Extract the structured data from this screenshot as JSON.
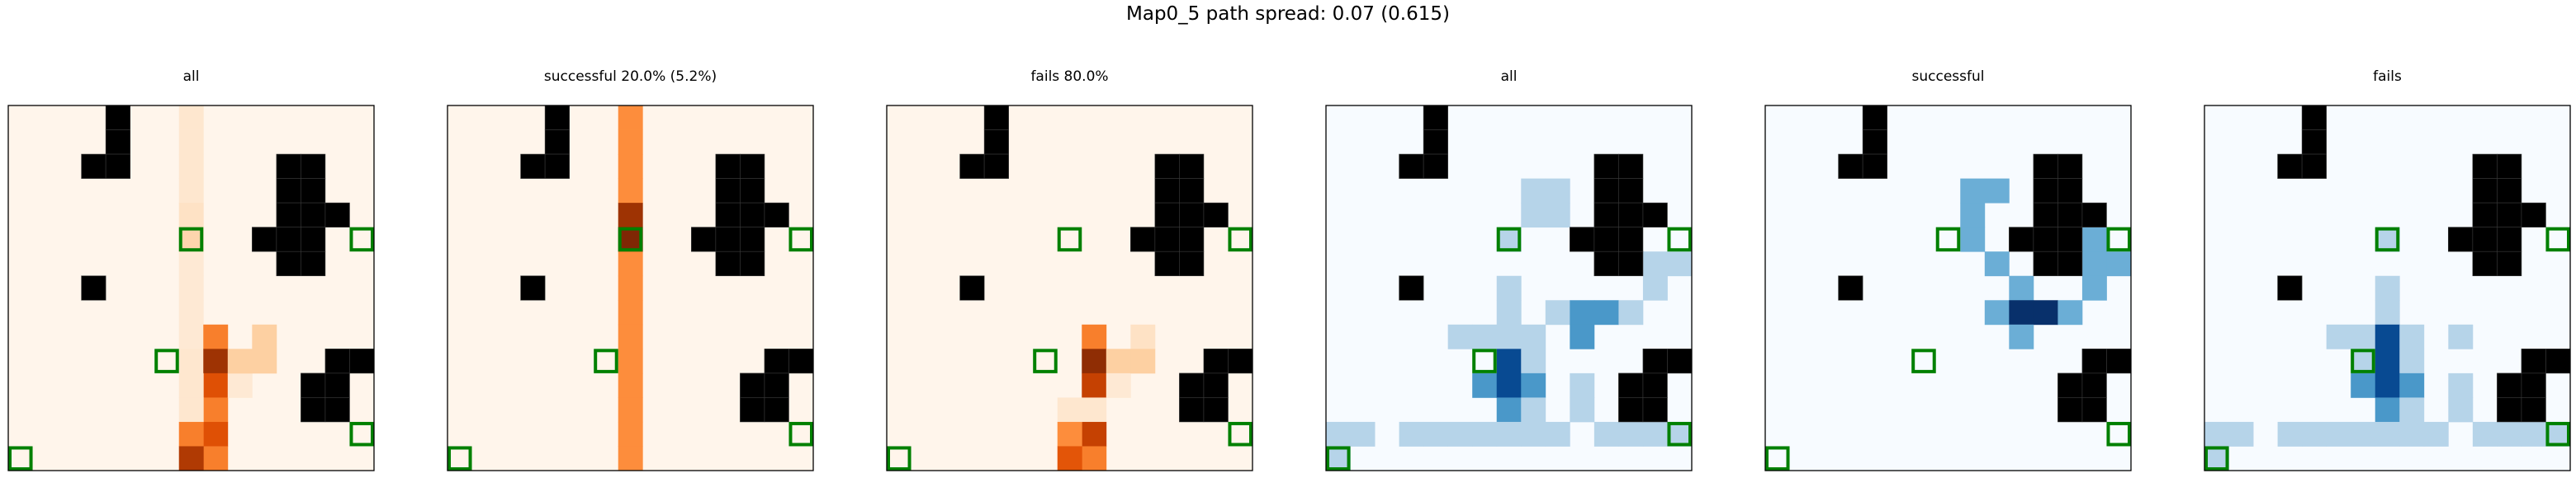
{
  "figure": {
    "title": "Map0_5 path spread: 0.07 (0.615)"
  },
  "colors": {
    "wall": "#000000",
    "goal_outline": "#008000",
    "frame": "#000000",
    "background": "#ffffff"
  },
  "chart_data": [
    {
      "type": "heatmap",
      "title": "all",
      "colormap": "Oranges",
      "grid": [
        15,
        15
      ],
      "walls": [
        [
          4,
          0
        ],
        [
          4,
          1
        ],
        [
          3,
          2
        ],
        [
          4,
          2
        ],
        [
          11,
          2
        ],
        [
          12,
          2
        ],
        [
          11,
          3
        ],
        [
          12,
          3
        ],
        [
          11,
          4
        ],
        [
          12,
          4
        ],
        [
          13,
          4
        ],
        [
          10,
          5
        ],
        [
          11,
          5
        ],
        [
          12,
          5
        ],
        [
          11,
          6
        ],
        [
          12,
          6
        ],
        [
          3,
          7
        ],
        [
          13,
          10
        ],
        [
          14,
          10
        ],
        [
          12,
          11
        ],
        [
          13,
          11
        ],
        [
          12,
          12
        ],
        [
          13,
          12
        ]
      ],
      "goals": [
        [
          7,
          5
        ],
        [
          14,
          5
        ],
        [
          6,
          10
        ],
        [
          14,
          13
        ],
        [
          0,
          14
        ]
      ],
      "cells": [
        [
          7,
          0,
          0.12
        ],
        [
          7,
          1,
          0.12
        ],
        [
          7,
          2,
          0.12
        ],
        [
          7,
          3,
          0.12
        ],
        [
          7,
          4,
          0.15
        ],
        [
          7,
          5,
          0.22
        ],
        [
          7,
          6,
          0.1
        ],
        [
          7,
          7,
          0.1
        ],
        [
          7,
          8,
          0.1
        ],
        [
          7,
          9,
          0.1
        ],
        [
          7,
          10,
          0.12
        ],
        [
          8,
          9,
          0.55
        ],
        [
          8,
          10,
          0.9
        ],
        [
          8,
          11,
          0.72
        ],
        [
          8,
          12,
          0.55
        ],
        [
          8,
          13,
          0.72
        ],
        [
          8,
          14,
          0.55
        ],
        [
          7,
          11,
          0.12
        ],
        [
          7,
          12,
          0.12
        ],
        [
          7,
          13,
          0.55
        ],
        [
          7,
          14,
          0.85
        ],
        [
          9,
          11,
          0.1
        ],
        [
          10,
          9,
          0.25
        ],
        [
          10,
          10,
          0.25
        ],
        [
          9,
          10,
          0.25
        ]
      ]
    },
    {
      "type": "heatmap",
      "title": "successful 20.0% (5.2%)",
      "colormap": "Oranges",
      "grid": [
        15,
        15
      ],
      "walls": [
        [
          4,
          0
        ],
        [
          4,
          1
        ],
        [
          3,
          2
        ],
        [
          4,
          2
        ],
        [
          11,
          2
        ],
        [
          12,
          2
        ],
        [
          11,
          3
        ],
        [
          12,
          3
        ],
        [
          11,
          4
        ],
        [
          12,
          4
        ],
        [
          13,
          4
        ],
        [
          10,
          5
        ],
        [
          11,
          5
        ],
        [
          12,
          5
        ],
        [
          11,
          6
        ],
        [
          12,
          6
        ],
        [
          3,
          7
        ],
        [
          13,
          10
        ],
        [
          14,
          10
        ],
        [
          12,
          11
        ],
        [
          13,
          11
        ],
        [
          12,
          12
        ],
        [
          13,
          12
        ]
      ],
      "goals": [
        [
          7,
          5
        ],
        [
          14,
          5
        ],
        [
          6,
          10
        ],
        [
          14,
          13
        ],
        [
          0,
          14
        ]
      ],
      "cells": [
        [
          7,
          0,
          0.5
        ],
        [
          7,
          1,
          0.5
        ],
        [
          7,
          2,
          0.5
        ],
        [
          7,
          3,
          0.5
        ],
        [
          7,
          4,
          0.9
        ],
        [
          7,
          5,
          1.0
        ],
        [
          7,
          6,
          0.5
        ],
        [
          7,
          7,
          0.5
        ],
        [
          7,
          8,
          0.5
        ],
        [
          7,
          9,
          0.5
        ],
        [
          7,
          10,
          0.5
        ],
        [
          7,
          11,
          0.5
        ],
        [
          7,
          12,
          0.5
        ],
        [
          7,
          13,
          0.5
        ],
        [
          7,
          14,
          0.5
        ]
      ]
    },
    {
      "type": "heatmap",
      "title": "fails 80.0%",
      "colormap": "Oranges",
      "grid": [
        15,
        15
      ],
      "walls": [
        [
          4,
          0
        ],
        [
          4,
          1
        ],
        [
          3,
          2
        ],
        [
          4,
          2
        ],
        [
          11,
          2
        ],
        [
          12,
          2
        ],
        [
          11,
          3
        ],
        [
          12,
          3
        ],
        [
          11,
          4
        ],
        [
          12,
          4
        ],
        [
          13,
          4
        ],
        [
          10,
          5
        ],
        [
          11,
          5
        ],
        [
          12,
          5
        ],
        [
          11,
          6
        ],
        [
          12,
          6
        ],
        [
          3,
          7
        ],
        [
          13,
          10
        ],
        [
          14,
          10
        ],
        [
          12,
          11
        ],
        [
          13,
          11
        ],
        [
          12,
          12
        ],
        [
          13,
          12
        ]
      ],
      "goals": [
        [
          7,
          5
        ],
        [
          14,
          5
        ],
        [
          6,
          10
        ],
        [
          14,
          13
        ],
        [
          0,
          14
        ]
      ],
      "cells": [
        [
          8,
          9,
          0.55
        ],
        [
          8,
          10,
          0.95
        ],
        [
          8,
          11,
          0.8
        ],
        [
          8,
          12,
          0.12
        ],
        [
          8,
          13,
          0.8
        ],
        [
          8,
          14,
          0.55
        ],
        [
          7,
          12,
          0.12
        ],
        [
          7,
          13,
          0.5
        ],
        [
          7,
          14,
          0.7
        ],
        [
          9,
          10,
          0.25
        ],
        [
          9,
          11,
          0.1
        ],
        [
          10,
          9,
          0.15
        ],
        [
          10,
          10,
          0.25
        ]
      ]
    },
    {
      "type": "heatmap",
      "title": "all",
      "colormap": "Blues",
      "grid": [
        15,
        15
      ],
      "walls": [
        [
          4,
          0
        ],
        [
          4,
          1
        ],
        [
          3,
          2
        ],
        [
          4,
          2
        ],
        [
          11,
          2
        ],
        [
          12,
          2
        ],
        [
          11,
          3
        ],
        [
          12,
          3
        ],
        [
          11,
          4
        ],
        [
          12,
          4
        ],
        [
          13,
          4
        ],
        [
          10,
          5
        ],
        [
          11,
          5
        ],
        [
          12,
          5
        ],
        [
          11,
          6
        ],
        [
          12,
          6
        ],
        [
          3,
          7
        ],
        [
          13,
          10
        ],
        [
          14,
          10
        ],
        [
          12,
          11
        ],
        [
          13,
          11
        ],
        [
          12,
          12
        ],
        [
          13,
          12
        ]
      ],
      "goals": [
        [
          7,
          5
        ],
        [
          14,
          5
        ],
        [
          6,
          10
        ],
        [
          14,
          13
        ],
        [
          0,
          14
        ]
      ],
      "cells": [
        [
          8,
          3,
          0.3
        ],
        [
          9,
          3,
          0.3
        ],
        [
          8,
          4,
          0.3
        ],
        [
          9,
          4,
          0.3
        ],
        [
          7,
          5,
          0.3
        ],
        [
          13,
          6,
          0.3
        ],
        [
          14,
          6,
          0.3
        ],
        [
          7,
          7,
          0.3
        ],
        [
          13,
          7,
          0.3
        ],
        [
          7,
          8,
          0.3
        ],
        [
          9,
          8,
          0.3
        ],
        [
          10,
          8,
          0.6
        ],
        [
          11,
          8,
          0.6
        ],
        [
          12,
          8,
          0.3
        ],
        [
          5,
          9,
          0.3
        ],
        [
          6,
          9,
          0.3
        ],
        [
          7,
          9,
          0.3
        ],
        [
          8,
          9,
          0.3
        ],
        [
          10,
          9,
          0.6
        ],
        [
          7,
          10,
          0.9
        ],
        [
          8,
          10,
          0.3
        ],
        [
          6,
          11,
          0.6
        ],
        [
          7,
          11,
          0.9
        ],
        [
          8,
          11,
          0.6
        ],
        [
          10,
          11,
          0.3
        ],
        [
          7,
          12,
          0.6
        ],
        [
          8,
          12,
          0.3
        ],
        [
          10,
          12,
          0.3
        ],
        [
          0,
          13,
          0.3
        ],
        [
          1,
          13,
          0.3
        ],
        [
          3,
          13,
          0.3
        ],
        [
          4,
          13,
          0.3
        ],
        [
          5,
          13,
          0.3
        ],
        [
          6,
          13,
          0.3
        ],
        [
          7,
          13,
          0.3
        ],
        [
          8,
          13,
          0.3
        ],
        [
          9,
          13,
          0.3
        ],
        [
          11,
          13,
          0.3
        ],
        [
          12,
          13,
          0.3
        ],
        [
          13,
          13,
          0.3
        ],
        [
          14,
          13,
          0.3
        ],
        [
          0,
          14,
          0.3
        ]
      ]
    },
    {
      "type": "heatmap",
      "title": "successful",
      "colormap": "Blues",
      "grid": [
        15,
        15
      ],
      "walls": [
        [
          4,
          0
        ],
        [
          4,
          1
        ],
        [
          3,
          2
        ],
        [
          4,
          2
        ],
        [
          11,
          2
        ],
        [
          12,
          2
        ],
        [
          11,
          3
        ],
        [
          12,
          3
        ],
        [
          11,
          4
        ],
        [
          12,
          4
        ],
        [
          13,
          4
        ],
        [
          10,
          5
        ],
        [
          11,
          5
        ],
        [
          12,
          5
        ],
        [
          11,
          6
        ],
        [
          12,
          6
        ],
        [
          3,
          7
        ],
        [
          13,
          10
        ],
        [
          14,
          10
        ],
        [
          12,
          11
        ],
        [
          13,
          11
        ],
        [
          12,
          12
        ],
        [
          13,
          12
        ]
      ],
      "goals": [
        [
          7,
          5
        ],
        [
          14,
          5
        ],
        [
          6,
          10
        ],
        [
          14,
          13
        ],
        [
          0,
          14
        ]
      ],
      "cells": [
        [
          8,
          3,
          0.5
        ],
        [
          9,
          3,
          0.5
        ],
        [
          8,
          4,
          0.5
        ],
        [
          8,
          5,
          0.5
        ],
        [
          9,
          6,
          0.5
        ],
        [
          13,
          6,
          0.5
        ],
        [
          14,
          6,
          0.5
        ],
        [
          13,
          5,
          0.5
        ],
        [
          10,
          7,
          0.5
        ],
        [
          13,
          7,
          0.5
        ],
        [
          9,
          8,
          0.5
        ],
        [
          10,
          8,
          1.0
        ],
        [
          11,
          8,
          1.0
        ],
        [
          12,
          8,
          0.5
        ],
        [
          10,
          9,
          0.5
        ]
      ]
    },
    {
      "type": "heatmap",
      "title": "fails",
      "colormap": "Blues",
      "grid": [
        15,
        15
      ],
      "walls": [
        [
          4,
          0
        ],
        [
          4,
          1
        ],
        [
          3,
          2
        ],
        [
          4,
          2
        ],
        [
          11,
          2
        ],
        [
          12,
          2
        ],
        [
          11,
          3
        ],
        [
          12,
          3
        ],
        [
          11,
          4
        ],
        [
          12,
          4
        ],
        [
          13,
          4
        ],
        [
          10,
          5
        ],
        [
          11,
          5
        ],
        [
          12,
          5
        ],
        [
          11,
          6
        ],
        [
          12,
          6
        ],
        [
          3,
          7
        ],
        [
          13,
          10
        ],
        [
          14,
          10
        ],
        [
          12,
          11
        ],
        [
          13,
          11
        ],
        [
          12,
          12
        ],
        [
          13,
          12
        ]
      ],
      "goals": [
        [
          7,
          5
        ],
        [
          14,
          5
        ],
        [
          6,
          10
        ],
        [
          14,
          13
        ],
        [
          0,
          14
        ]
      ],
      "cells": [
        [
          7,
          5,
          0.3
        ],
        [
          7,
          7,
          0.3
        ],
        [
          7,
          8,
          0.3
        ],
        [
          5,
          9,
          0.3
        ],
        [
          6,
          9,
          0.3
        ],
        [
          7,
          9,
          0.9
        ],
        [
          8,
          9,
          0.3
        ],
        [
          10,
          9,
          0.3
        ],
        [
          6,
          10,
          0.3
        ],
        [
          7,
          10,
          0.9
        ],
        [
          8,
          10,
          0.3
        ],
        [
          6,
          11,
          0.6
        ],
        [
          7,
          11,
          0.9
        ],
        [
          8,
          11,
          0.6
        ],
        [
          10,
          11,
          0.3
        ],
        [
          7,
          12,
          0.6
        ],
        [
          8,
          12,
          0.3
        ],
        [
          10,
          12,
          0.3
        ],
        [
          0,
          13,
          0.3
        ],
        [
          1,
          13,
          0.3
        ],
        [
          3,
          13,
          0.3
        ],
        [
          4,
          13,
          0.3
        ],
        [
          5,
          13,
          0.3
        ],
        [
          6,
          13,
          0.3
        ],
        [
          7,
          13,
          0.3
        ],
        [
          8,
          13,
          0.3
        ],
        [
          9,
          13,
          0.3
        ],
        [
          11,
          13,
          0.3
        ],
        [
          12,
          13,
          0.3
        ],
        [
          13,
          13,
          0.3
        ],
        [
          14,
          13,
          0.3
        ],
        [
          0,
          14,
          0.3
        ]
      ]
    }
  ]
}
